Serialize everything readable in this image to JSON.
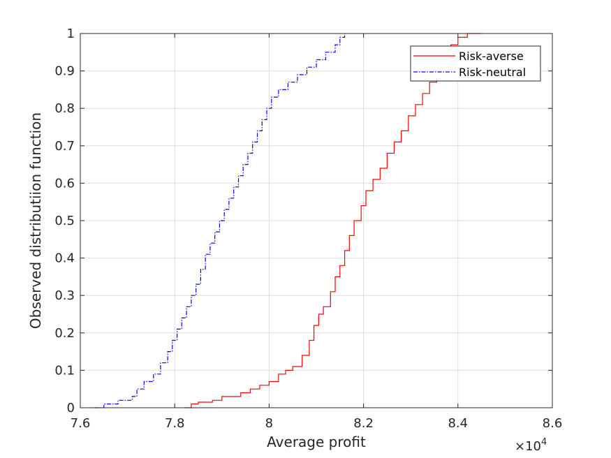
{
  "chart_data": {
    "type": "line",
    "xlabel": "Average profit",
    "ylabel": "Observed distributiion function",
    "x_exponent_label": "×10",
    "x_exponent_power": "4",
    "xlim": [
      76000,
      86000
    ],
    "ylim": [
      0,
      1
    ],
    "x_ticks": [
      76000,
      78000,
      80000,
      82000,
      84000,
      86000
    ],
    "x_tick_labels": [
      "7.6",
      "7.8",
      "8",
      "8.2",
      "8.4",
      "8.6"
    ],
    "y_ticks": [
      0,
      0.1,
      0.2,
      0.3,
      0.4,
      0.5,
      0.6,
      0.7,
      0.8,
      0.9,
      1
    ],
    "y_tick_labels": [
      "0",
      "0.1",
      "0.2",
      "0.3",
      "0.4",
      "0.5",
      "0.6",
      "0.7",
      "0.8",
      "0.9",
      "1"
    ],
    "grid": true,
    "legend_position": "top-right",
    "series": [
      {
        "name": "Risk-averse",
        "color": "#ff0000",
        "dash": "solid",
        "x": [
          78200,
          78350,
          78500,
          78800,
          79000,
          79400,
          79600,
          79800,
          80000,
          80200,
          80350,
          80500,
          80700,
          80850,
          80950,
          81050,
          81150,
          81300,
          81400,
          81500,
          81600,
          81700,
          81800,
          81950,
          82050,
          82200,
          82350,
          82500,
          82650,
          82800,
          82950,
          83100,
          83250,
          83400,
          83550,
          83700,
          83850,
          84000,
          84200,
          84300,
          84500
        ],
        "y": [
          0,
          0.01,
          0.015,
          0.02,
          0.03,
          0.04,
          0.05,
          0.06,
          0.07,
          0.09,
          0.1,
          0.11,
          0.14,
          0.18,
          0.22,
          0.25,
          0.27,
          0.31,
          0.35,
          0.38,
          0.42,
          0.46,
          0.5,
          0.54,
          0.58,
          0.61,
          0.64,
          0.68,
          0.71,
          0.74,
          0.78,
          0.81,
          0.84,
          0.87,
          0.91,
          0.94,
          0.97,
          0.99,
          1.0,
          1.0,
          1.0
        ]
      },
      {
        "name": "Risk-neutral",
        "color": "#0000ff",
        "dash": "dashdot",
        "x": [
          76300,
          76500,
          76800,
          77100,
          77200,
          77350,
          77550,
          77700,
          77850,
          77950,
          78050,
          78150,
          78250,
          78350,
          78450,
          78550,
          78650,
          78750,
          78850,
          78950,
          79050,
          79150,
          79250,
          79350,
          79450,
          79550,
          79650,
          79750,
          79850,
          79950,
          80050,
          80200,
          80400,
          80600,
          80800,
          81000,
          81200,
          81400,
          81500,
          81600
        ],
        "y": [
          0,
          0.01,
          0.02,
          0.03,
          0.05,
          0.07,
          0.09,
          0.12,
          0.15,
          0.18,
          0.21,
          0.24,
          0.27,
          0.3,
          0.33,
          0.37,
          0.41,
          0.44,
          0.47,
          0.5,
          0.53,
          0.56,
          0.59,
          0.62,
          0.65,
          0.68,
          0.71,
          0.74,
          0.77,
          0.8,
          0.83,
          0.85,
          0.87,
          0.89,
          0.91,
          0.93,
          0.95,
          0.97,
          0.99,
          1.0
        ]
      }
    ]
  }
}
